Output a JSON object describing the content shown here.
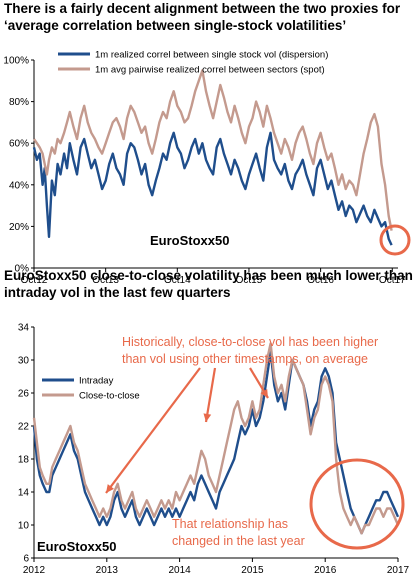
{
  "chart_data": [
    {
      "type": "line",
      "title": "There is a fairly decent alignment between the two proxies for ‘average correlation between single-stock volatilities’",
      "watermark": "EuroStoxx50",
      "x_tick_labels": [
        "Oct12",
        "Oct13",
        "Oct14",
        "Oct15",
        "Oct16",
        "Oct17"
      ],
      "y_tick_labels": [
        "0%",
        "20%",
        "40%",
        "60%",
        "80%",
        "100%"
      ],
      "ylim": [
        0,
        100
      ],
      "xlim": [
        2012.75,
        2017.83
      ],
      "grid": false,
      "legend_position": "top",
      "series": [
        {
          "name": "1m realized correl between single stock vol (dispersion)",
          "color": "#1f4e8c",
          "x": [
            2012.75,
            2012.79,
            2012.83,
            2012.87,
            2012.9,
            2012.93,
            2012.96,
            2013.0,
            2013.04,
            2013.08,
            2013.12,
            2013.17,
            2013.21,
            2013.25,
            2013.3,
            2013.35,
            2013.4,
            2013.45,
            2013.5,
            2013.55,
            2013.6,
            2013.65,
            2013.7,
            2013.75,
            2013.8,
            2013.85,
            2013.9,
            2013.95,
            2014.0,
            2014.05,
            2014.1,
            2014.15,
            2014.2,
            2014.25,
            2014.3,
            2014.35,
            2014.4,
            2014.45,
            2014.5,
            2014.55,
            2014.6,
            2014.65,
            2014.7,
            2014.75,
            2014.8,
            2014.85,
            2014.9,
            2014.95,
            2015.0,
            2015.05,
            2015.1,
            2015.15,
            2015.2,
            2015.25,
            2015.3,
            2015.35,
            2015.4,
            2015.45,
            2015.5,
            2015.55,
            2015.6,
            2015.65,
            2015.7,
            2015.75,
            2015.8,
            2015.85,
            2015.9,
            2015.95,
            2016.0,
            2016.05,
            2016.1,
            2016.15,
            2016.2,
            2016.25,
            2016.3,
            2016.35,
            2016.4,
            2016.45,
            2016.5,
            2016.55,
            2016.6,
            2016.65,
            2016.7,
            2016.75,
            2016.8,
            2016.85,
            2016.9,
            2016.95,
            2017.0,
            2017.05,
            2017.1,
            2017.15,
            2017.2,
            2017.25,
            2017.3,
            2017.35,
            2017.4,
            2017.45,
            2017.5,
            2017.55,
            2017.6,
            2017.65,
            2017.7,
            2017.74
          ],
          "values": [
            58,
            52,
            55,
            40,
            48,
            30,
            15,
            42,
            35,
            50,
            45,
            55,
            48,
            60,
            52,
            45,
            58,
            62,
            55,
            48,
            52,
            45,
            38,
            42,
            50,
            55,
            48,
            45,
            40,
            55,
            60,
            58,
            52,
            45,
            50,
            40,
            35,
            42,
            48,
            55,
            52,
            60,
            65,
            58,
            55,
            48,
            52,
            58,
            62,
            55,
            60,
            52,
            48,
            45,
            58,
            62,
            55,
            50,
            45,
            52,
            48,
            42,
            38,
            45,
            50,
            55,
            48,
            42,
            58,
            65,
            52,
            48,
            45,
            50,
            42,
            38,
            45,
            48,
            52,
            45,
            40,
            35,
            48,
            52,
            45,
            38,
            42,
            35,
            28,
            32,
            25,
            30,
            28,
            22,
            26,
            30,
            25,
            22,
            28,
            24,
            20,
            22,
            14,
            11
          ]
        },
        {
          "name": "1m avg pairwise realized correl between sectors (spot)",
          "color": "#c49a8e",
          "x": [
            2012.75,
            2012.79,
            2012.83,
            2012.87,
            2012.9,
            2012.93,
            2012.96,
            2013.0,
            2013.04,
            2013.08,
            2013.12,
            2013.17,
            2013.21,
            2013.25,
            2013.3,
            2013.35,
            2013.4,
            2013.45,
            2013.5,
            2013.55,
            2013.6,
            2013.65,
            2013.7,
            2013.75,
            2013.8,
            2013.85,
            2013.9,
            2013.95,
            2014.0,
            2014.05,
            2014.1,
            2014.15,
            2014.2,
            2014.25,
            2014.3,
            2014.35,
            2014.4,
            2014.45,
            2014.5,
            2014.55,
            2014.6,
            2014.65,
            2014.7,
            2014.75,
            2014.8,
            2014.85,
            2014.9,
            2014.95,
            2015.0,
            2015.05,
            2015.1,
            2015.15,
            2015.2,
            2015.25,
            2015.3,
            2015.35,
            2015.4,
            2015.45,
            2015.5,
            2015.55,
            2015.6,
            2015.65,
            2015.7,
            2015.75,
            2015.8,
            2015.85,
            2015.9,
            2015.95,
            2016.0,
            2016.05,
            2016.1,
            2016.15,
            2016.2,
            2016.25,
            2016.3,
            2016.35,
            2016.4,
            2016.45,
            2016.5,
            2016.55,
            2016.6,
            2016.65,
            2016.7,
            2016.75,
            2016.8,
            2016.85,
            2016.9,
            2016.95,
            2017.0,
            2017.05,
            2017.1,
            2017.15,
            2017.2,
            2017.25,
            2017.3,
            2017.35,
            2017.4,
            2017.45,
            2017.5,
            2017.55,
            2017.6,
            2017.65,
            2017.7,
            2017.74
          ],
          "values": [
            62,
            60,
            58,
            55,
            50,
            45,
            52,
            58,
            55,
            62,
            60,
            65,
            70,
            75,
            68,
            62,
            72,
            78,
            70,
            65,
            62,
            58,
            55,
            60,
            65,
            70,
            72,
            68,
            62,
            72,
            78,
            75,
            70,
            65,
            68,
            60,
            55,
            62,
            70,
            75,
            72,
            80,
            85,
            78,
            75,
            70,
            72,
            78,
            85,
            90,
            95,
            85,
            78,
            72,
            80,
            88,
            82,
            75,
            70,
            78,
            72,
            65,
            60,
            68,
            72,
            80,
            75,
            68,
            78,
            72,
            65,
            60,
            55,
            62,
            58,
            52,
            60,
            65,
            68,
            62,
            55,
            50,
            60,
            65,
            58,
            52,
            55,
            48,
            40,
            45,
            38,
            42,
            40,
            35,
            45,
            55,
            62,
            70,
            74,
            68,
            50,
            40,
            25,
            18
          ]
        }
      ]
    },
    {
      "type": "line",
      "title": "EuroStoxx50 close-to-close volatility has been much lower than intraday vol in the last few quarters",
      "watermark": "EuroStoxx50",
      "x_tick_labels": [
        "2012",
        "2013",
        "2014",
        "2015",
        "2016",
        "2017"
      ],
      "y_tick_labels": [
        "6",
        "10",
        "14",
        "18",
        "22",
        "26",
        "30",
        "34"
      ],
      "ylim": [
        6,
        34
      ],
      "xlim": [
        2012,
        2017
      ],
      "grid": false,
      "legend_position": "top-left",
      "annotations": [
        "Historically, close-to-close vol has been higher than vol using other timestamps, on average",
        "That relationship has changed in the last year"
      ],
      "series": [
        {
          "name": "Intraday",
          "color": "#1f4e8c",
          "x": [
            2012.0,
            2012.04,
            2012.08,
            2012.12,
            2012.17,
            2012.21,
            2012.25,
            2012.3,
            2012.35,
            2012.4,
            2012.45,
            2012.5,
            2012.55,
            2012.6,
            2012.65,
            2012.7,
            2012.75,
            2012.8,
            2012.85,
            2012.9,
            2012.95,
            2013.0,
            2013.05,
            2013.1,
            2013.15,
            2013.2,
            2013.25,
            2013.3,
            2013.35,
            2013.4,
            2013.45,
            2013.5,
            2013.55,
            2013.6,
            2013.65,
            2013.7,
            2013.75,
            2013.8,
            2013.85,
            2013.9,
            2013.95,
            2014.0,
            2014.05,
            2014.1,
            2014.15,
            2014.2,
            2014.25,
            2014.3,
            2014.35,
            2014.4,
            2014.45,
            2014.5,
            2014.55,
            2014.6,
            2014.65,
            2014.7,
            2014.75,
            2014.8,
            2014.85,
            2014.9,
            2014.95,
            2015.0,
            2015.05,
            2015.1,
            2015.15,
            2015.2,
            2015.25,
            2015.3,
            2015.35,
            2015.4,
            2015.45,
            2015.5,
            2015.55,
            2015.6,
            2015.65,
            2015.7,
            2015.75,
            2015.8,
            2015.85,
            2015.9,
            2015.95,
            2016.0,
            2016.05,
            2016.1,
            2016.15,
            2016.2,
            2016.25,
            2016.3,
            2016.35,
            2016.4,
            2016.45,
            2016.5,
            2016.55,
            2016.6,
            2016.65,
            2016.7,
            2016.75,
            2016.8,
            2016.85,
            2016.9,
            2016.95,
            2017.0
          ],
          "values": [
            22,
            18,
            16,
            15,
            14,
            14,
            16,
            17,
            18,
            19,
            20,
            21,
            19,
            18,
            16,
            14,
            13,
            12,
            11,
            10,
            11,
            10,
            11,
            13,
            14,
            12,
            11,
            12,
            13,
            11,
            10,
            11,
            12,
            11,
            10,
            11,
            12,
            11,
            12,
            11,
            12,
            11,
            12,
            13,
            14,
            13,
            15,
            16,
            15,
            14,
            13,
            12,
            14,
            15,
            16,
            17,
            18,
            20,
            22,
            21,
            22,
            24,
            22,
            23,
            25,
            28,
            31,
            27,
            25,
            26,
            24,
            27,
            30,
            29,
            28,
            27,
            25,
            22,
            24,
            25,
            28,
            29,
            28,
            26,
            20,
            18,
            16,
            14,
            12,
            11,
            10,
            9,
            10,
            11,
            12,
            13,
            13,
            14,
            14,
            13,
            12,
            11
          ]
        },
        {
          "name": "Close-to-close",
          "color": "#c49a8e",
          "x": [
            2012.0,
            2012.04,
            2012.08,
            2012.12,
            2012.17,
            2012.21,
            2012.25,
            2012.3,
            2012.35,
            2012.4,
            2012.45,
            2012.5,
            2012.55,
            2012.6,
            2012.65,
            2012.7,
            2012.75,
            2012.8,
            2012.85,
            2012.9,
            2012.95,
            2013.0,
            2013.05,
            2013.1,
            2013.15,
            2013.2,
            2013.25,
            2013.3,
            2013.35,
            2013.4,
            2013.45,
            2013.5,
            2013.55,
            2013.6,
            2013.65,
            2013.7,
            2013.75,
            2013.8,
            2013.85,
            2013.9,
            2013.95,
            2014.0,
            2014.05,
            2014.1,
            2014.15,
            2014.2,
            2014.25,
            2014.3,
            2014.35,
            2014.4,
            2014.45,
            2014.5,
            2014.55,
            2014.6,
            2014.65,
            2014.7,
            2014.75,
            2014.8,
            2014.85,
            2014.9,
            2014.95,
            2015.0,
            2015.05,
            2015.1,
            2015.15,
            2015.2,
            2015.25,
            2015.3,
            2015.35,
            2015.4,
            2015.45,
            2015.5,
            2015.55,
            2015.6,
            2015.65,
            2015.7,
            2015.75,
            2015.8,
            2015.85,
            2015.9,
            2015.95,
            2016.0,
            2016.05,
            2016.1,
            2016.15,
            2016.2,
            2016.25,
            2016.3,
            2016.35,
            2016.4,
            2016.45,
            2016.5,
            2016.55,
            2016.6,
            2016.65,
            2016.7,
            2016.75,
            2016.8,
            2016.85,
            2016.9,
            2016.95,
            2017.0
          ],
          "values": [
            23,
            20,
            17,
            16,
            15,
            15,
            17,
            18,
            19,
            20,
            21,
            22,
            20,
            19,
            17,
            15,
            14,
            13,
            12,
            11,
            12,
            11,
            12,
            14,
            15,
            13,
            12,
            13,
            14,
            12,
            11,
            12,
            13,
            12,
            11,
            12,
            13,
            12,
            13,
            12,
            14,
            13,
            14,
            15,
            16,
            15,
            17,
            19,
            18,
            16,
            15,
            14,
            16,
            18,
            20,
            22,
            24,
            25,
            23,
            22,
            23,
            25,
            23,
            24,
            27,
            30,
            32,
            28,
            26,
            27,
            25,
            28,
            30,
            29,
            28,
            27,
            24,
            21,
            23,
            24,
            27,
            28,
            27,
            25,
            18,
            14,
            12,
            11,
            10,
            11,
            10,
            9,
            10,
            10,
            11,
            12,
            12,
            11,
            12,
            12,
            11,
            10
          ]
        }
      ]
    }
  ]
}
